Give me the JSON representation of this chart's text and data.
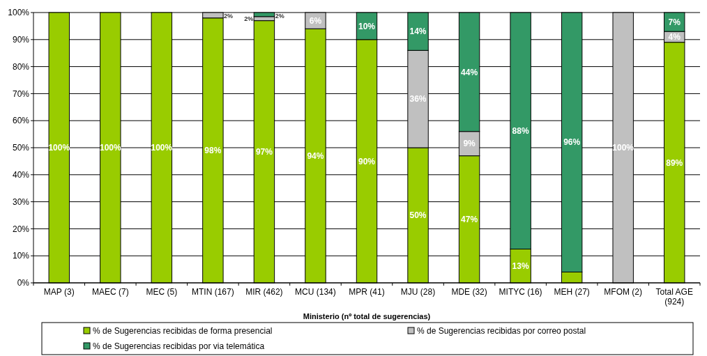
{
  "chart_data": {
    "type": "bar",
    "stacked": true,
    "xlabel": "Ministerio (nº total de sugerencias)",
    "categories": [
      "MAP (3)",
      "MAEC (7)",
      "MEC (5)",
      "MTIN (167)",
      "MIR (462)",
      "MCU (134)",
      "MPR (41)",
      "MJU (28)",
      "MDE (32)",
      "MITYC (16)",
      "MEH (27)",
      "MFOM (2)",
      "Total AGE (924)"
    ],
    "series": [
      {
        "name": "% de Sugerencias recibidas de forma presencial",
        "color": "#99cc00",
        "values": [
          100,
          100,
          100,
          98,
          97,
          94,
          90,
          50,
          47,
          12.5,
          4,
          0,
          89
        ],
        "value_labels": [
          "100%",
          "100%",
          "100%",
          "98%",
          "97%",
          "94%",
          "90%",
          "50%",
          "47%",
          "13%",
          null,
          null,
          "89%"
        ]
      },
      {
        "name": "% de Sugerencias recibidas por correo postal",
        "color": "#c0c0c0",
        "values": [
          0,
          0,
          0,
          2,
          1.5,
          6,
          0,
          36,
          9,
          0,
          0,
          100,
          4
        ],
        "value_labels": [
          null,
          null,
          null,
          "2%",
          "2%",
          "6%",
          null,
          "36%",
          "9%",
          null,
          null,
          "100%",
          "4%"
        ]
      },
      {
        "name": "% de Sugerencias recibidas por via telemática",
        "color": "#339966",
        "values": [
          0,
          0,
          0,
          0,
          1.5,
          0,
          10,
          14,
          44,
          87.5,
          96,
          0,
          7
        ],
        "value_labels": [
          null,
          null,
          null,
          null,
          "2%",
          null,
          "10%",
          "14%",
          "44%",
          "88%",
          "96%",
          null,
          "7%"
        ]
      }
    ],
    "ylim": [
      0,
      100
    ],
    "yticks": [
      {
        "value": 0,
        "label": "0%"
      },
      {
        "value": 10,
        "label": "10%"
      },
      {
        "value": 20,
        "label": "20%"
      },
      {
        "value": 30,
        "label": "30%"
      },
      {
        "value": 40,
        "label": "40%"
      },
      {
        "value": 50,
        "label": "50%"
      },
      {
        "value": 60,
        "label": "60%"
      },
      {
        "value": 70,
        "label": "70%"
      },
      {
        "value": 80,
        "label": "80%"
      },
      {
        "value": 90,
        "label": "90%"
      },
      {
        "value": 100,
        "label": "100%"
      }
    ],
    "grid": "y",
    "legend": "bottom"
  }
}
